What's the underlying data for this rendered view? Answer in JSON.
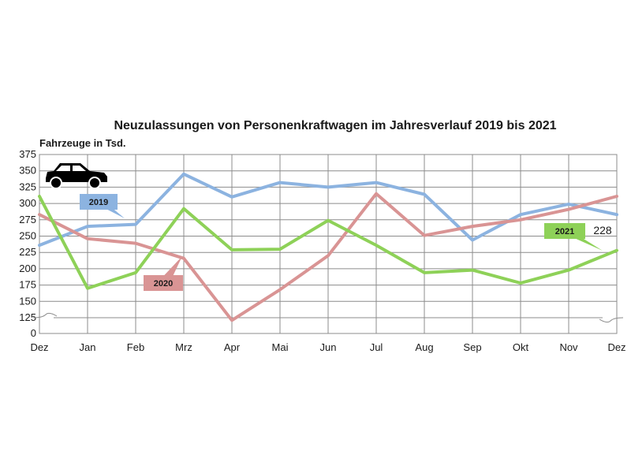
{
  "chart_data": {
    "type": "line",
    "title": "Neuzulassungen von Personenkraftwagen im Jahresverlauf 2019 bis 2021",
    "ylabel": "Fahrzeuge in Tsd.",
    "xlabel": "",
    "categories": [
      "Dez",
      "Jan",
      "Feb",
      "Mrz",
      "Apr",
      "Mai",
      "Jun",
      "Jul",
      "Aug",
      "Sep",
      "Okt",
      "Nov",
      "Dez"
    ],
    "y_ticks": [
      "0",
      "125",
      "150",
      "175",
      "200",
      "225",
      "250",
      "275",
      "300",
      "325",
      "350",
      "375"
    ],
    "y_axis_break": [
      0,
      125
    ],
    "ylim": [
      125,
      375
    ],
    "grid": true,
    "series": [
      {
        "name": "2019",
        "color": "#8cb3e0",
        "label_color": "#8cb3e0",
        "values": [
          236,
          265,
          268,
          345,
          310,
          332,
          325,
          332,
          314,
          244,
          283,
          299,
          283
        ]
      },
      {
        "name": "2020",
        "color": "#d99494",
        "label_color": "#d99494",
        "values": [
          283,
          246,
          239,
          216,
          121,
          168,
          220,
          315,
          251,
          265,
          275,
          291,
          311
        ]
      },
      {
        "name": "2021",
        "color": "#8ed158",
        "label_color": "#8ed158",
        "values": [
          311,
          170,
          194,
          292,
          229,
          230,
          274,
          236,
          194,
          198,
          178,
          198,
          228
        ]
      }
    ],
    "annotations": [
      {
        "text": "228",
        "series": "2021",
        "category_index": 12
      }
    ],
    "icon": "car-icon"
  }
}
